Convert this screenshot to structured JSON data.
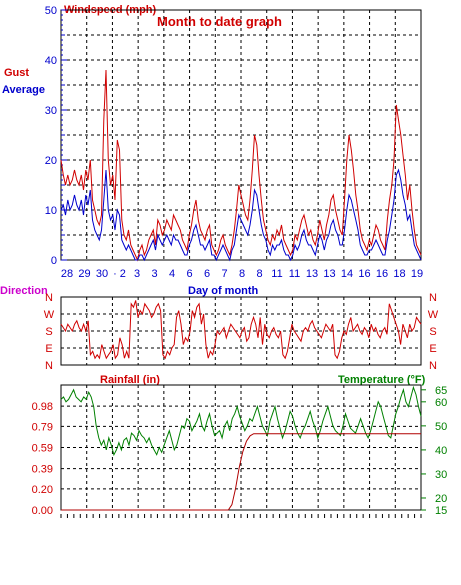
{
  "chart_data": [
    {
      "type": "line",
      "title": "Month to date graph",
      "ylabel": "Windspeed (mph)",
      "xlabel": "Day of month",
      "ylim": [
        0,
        50
      ],
      "y_ticks": [
        "0",
        "10",
        "20",
        "30",
        "40",
        "50"
      ],
      "x_ticks": [
        "28",
        "29",
        "30",
        "1",
        "2",
        "3",
        "3",
        "4",
        "5",
        "6",
        "6",
        "7",
        "8",
        "9",
        "10",
        "11",
        "11",
        "12",
        "13",
        "13",
        "14",
        "15",
        "16",
        "16",
        "17",
        "18",
        "18",
        "19"
      ],
      "x_tick_labels": [
        "28",
        "29",
        "30",
        "· 2",
        "3",
        "3",
        "4",
        "6",
        "6",
        "7",
        "8",
        "8",
        "11",
        "11",
        "13",
        "13",
        "14",
        "16",
        "16",
        "18",
        "19"
      ],
      "legend": [
        {
          "name": "Gust",
          "color": "#d00000"
        },
        {
          "name": "Average",
          "color": "#0000cc"
        }
      ],
      "series": [
        {
          "name": "Gust",
          "color": "#d00000",
          "values": [
            20,
            17,
            15,
            17,
            15,
            16,
            18,
            16,
            15,
            17,
            14,
            18,
            16,
            20,
            12,
            10,
            8,
            7,
            9,
            28,
            38,
            20,
            15,
            17,
            12,
            24,
            22,
            8,
            5,
            4,
            6,
            3,
            2,
            1,
            0,
            2,
            3,
            1,
            2,
            4,
            5,
            6,
            3,
            8,
            7,
            5,
            6,
            8,
            7,
            6,
            9,
            8,
            7,
            6,
            4,
            3,
            2,
            5,
            7,
            10,
            12,
            8,
            6,
            5,
            4,
            6,
            7,
            3,
            2,
            1,
            2,
            4,
            5,
            3,
            2,
            1,
            3,
            6,
            10,
            15,
            13,
            11,
            9,
            8,
            12,
            18,
            25,
            23,
            17,
            12,
            8,
            6,
            4,
            3,
            5,
            4,
            6,
            5,
            7,
            4,
            3,
            2,
            1,
            2,
            5,
            4,
            6,
            8,
            9,
            7,
            5,
            6,
            4,
            3,
            5,
            8,
            6,
            4,
            7,
            9,
            12,
            13,
            10,
            8,
            6,
            5,
            12,
            20,
            25,
            22,
            18,
            13,
            10,
            6,
            4,
            3,
            2,
            4,
            3,
            5,
            7,
            6,
            4,
            3,
            2,
            8,
            12,
            15,
            20,
            31,
            28,
            25,
            21,
            17,
            12,
            15,
            10,
            6,
            3,
            2,
            1
          ]
        },
        {
          "name": "Average",
          "color": "#0000cc",
          "values": [
            10,
            11,
            9,
            12,
            10,
            11,
            13,
            11,
            10,
            12,
            9,
            13,
            11,
            14,
            8,
            6,
            5,
            4,
            6,
            12,
            18,
            10,
            8,
            9,
            6,
            10,
            9,
            4,
            3,
            2,
            3,
            2,
            1,
            0,
            0,
            1,
            1,
            0,
            1,
            2,
            3,
            4,
            2,
            5,
            4,
            3,
            4,
            5,
            4,
            3,
            5,
            4,
            4,
            3,
            2,
            1,
            1,
            3,
            4,
            6,
            7,
            5,
            3,
            3,
            2,
            3,
            4,
            1,
            1,
            0,
            1,
            2,
            3,
            2,
            1,
            0,
            2,
            3,
            6,
            9,
            8,
            7,
            6,
            5,
            7,
            10,
            14,
            13,
            10,
            7,
            5,
            4,
            2,
            1,
            3,
            2,
            3,
            3,
            4,
            2,
            1,
            1,
            0,
            1,
            3,
            2,
            3,
            5,
            6,
            4,
            3,
            3,
            2,
            1,
            3,
            5,
            4,
            2,
            4,
            5,
            7,
            8,
            6,
            5,
            3,
            3,
            6,
            10,
            13,
            12,
            10,
            8,
            6,
            3,
            2,
            1,
            1,
            2,
            2,
            3,
            4,
            3,
            2,
            1,
            1,
            4,
            6,
            9,
            12,
            17,
            18,
            16,
            13,
            11,
            8,
            9,
            6,
            3,
            2,
            1,
            0
          ]
        }
      ]
    },
    {
      "type": "line",
      "ylabel": "Direction",
      "y_ticks": [
        "N",
        "W",
        "S",
        "E",
        "N"
      ],
      "series": [
        {
          "name": "Direction",
          "color": "#d00000",
          "values": [
            0.6,
            0.55,
            0.5,
            0.6,
            0.55,
            0.5,
            0.6,
            0.65,
            0.55,
            0.5,
            0.6,
            0.5,
            0.65,
            0.15,
            0.2,
            0.1,
            0.15,
            0.1,
            0.3,
            0.2,
            0.1,
            0.15,
            0.2,
            0.3,
            0.1,
            0.15,
            0.4,
            0.3,
            0.1,
            0.2,
            0.1,
            0.9,
            0.85,
            0.95,
            0.7,
            0.8,
            0.75,
            0.9,
            0.85,
            0.8,
            0.7,
            0.75,
            0.85,
            0.9,
            0.8,
            0.15,
            0.1,
            0.2,
            0.15,
            0.25,
            0.3,
            0.7,
            0.8,
            0.6,
            0.3,
            0.4,
            0.35,
            0.5,
            0.8,
            0.7,
            0.85,
            0.9,
            0.6,
            0.75,
            0.3,
            0.1,
            0.2,
            0.15,
            0.3,
            0.5,
            0.45,
            0.5,
            0.55,
            0.4,
            0.5,
            0.6,
            0.55,
            0.5,
            0.45,
            0.4,
            0.5,
            0.55,
            0.35,
            0.4,
            0.6,
            0.7,
            0.6,
            0.4,
            0.7,
            0.3,
            0.6,
            0.45,
            0.4,
            0.5,
            0.55,
            0.45,
            0.4,
            0.5,
            0.15,
            0.1,
            0.2,
            0.4,
            0.6,
            0.5,
            0.45,
            0.4,
            0.35,
            0.5,
            0.55,
            0.5,
            0.6,
            0.65,
            0.55,
            0.5,
            0.45,
            0.4,
            0.5,
            0.6,
            0.55,
            0.5,
            0.6,
            0.15,
            0.1,
            0.2,
            0.4,
            0.5,
            0.45,
            0.6,
            0.7,
            0.5,
            0.55,
            0.6,
            0.5,
            0.45,
            0.55,
            0.5,
            0.4,
            0.6,
            0.5,
            0.55,
            0.45,
            0.4,
            0.5,
            0.55,
            0.45,
            0.9,
            0.8,
            0.7,
            0.6,
            0.5,
            0.3,
            0.6,
            0.5,
            0.4,
            0.6,
            0.5,
            0.55,
            0.7,
            0.65,
            0.6
          ]
        }
      ]
    },
    {
      "type": "line",
      "ylabel": "Rainfall (in)",
      "ylim": [
        0,
        1.18
      ],
      "y_ticks": [
        "0.00",
        "0.20",
        "0.39",
        "0.59",
        "0.79",
        "0.98"
      ],
      "series": [
        {
          "name": "Rainfall (in)",
          "color": "#b00000",
          "values": [
            0,
            0,
            0,
            0,
            0,
            0,
            0,
            0,
            0,
            0,
            0,
            0,
            0,
            0,
            0,
            0,
            0,
            0,
            0,
            0,
            0,
            0,
            0,
            0,
            0,
            0,
            0,
            0,
            0,
            0,
            0,
            0,
            0,
            0,
            0,
            0,
            0,
            0,
            0,
            0,
            0,
            0,
            0,
            0,
            0,
            0,
            0,
            0.05,
            0.2,
            0.4,
            0.55,
            0.65,
            0.7,
            0.72,
            0.72,
            0.72,
            0.72,
            0.72,
            0.72,
            0.72,
            0.72,
            0.72,
            0.72,
            0.72,
            0.72,
            0.72,
            0.72,
            0.72,
            0.72,
            0.72,
            0.72,
            0.72,
            0.72,
            0.72,
            0.72,
            0.72,
            0.72,
            0.72,
            0.72,
            0.72,
            0.72,
            0.72,
            0.72,
            0.72,
            0.72,
            0.72,
            0.72,
            0.72,
            0.72,
            0.72,
            0.72,
            0.72,
            0.72,
            0.72,
            0.72,
            0.72,
            0.72,
            0.72,
            0.72,
            0.72
          ]
        }
      ]
    },
    {
      "type": "line",
      "ylabel": "Temperature (°F)",
      "ylim": [
        15,
        67
      ],
      "y_ticks": [
        "15",
        "20",
        "30",
        "40",
        "50",
        "60",
        "65"
      ],
      "series": [
        {
          "name": "Temperature (°F)",
          "color": "#008000",
          "values": [
            61,
            62,
            60,
            61,
            63,
            65,
            62,
            61,
            60,
            62,
            61,
            64,
            62,
            58,
            50,
            45,
            42,
            44,
            40,
            45,
            42,
            38,
            40,
            43,
            40,
            44,
            45,
            42,
            47,
            46,
            44,
            48,
            46,
            45,
            43,
            45,
            42,
            40,
            38,
            41,
            39,
            42,
            45,
            48,
            44,
            40,
            42,
            46,
            50,
            49,
            53,
            52,
            48,
            50,
            52,
            55,
            50,
            48,
            52,
            55,
            50,
            46,
            47,
            48,
            45,
            50,
            52,
            48,
            53,
            55,
            58,
            54,
            51,
            48,
            50,
            53,
            52,
            55,
            58,
            54,
            50,
            48,
            46,
            52,
            55,
            58,
            53,
            49,
            45,
            48,
            52,
            56,
            54,
            50,
            47,
            45,
            48,
            50,
            53,
            56,
            52,
            49,
            45,
            48,
            52,
            55,
            58,
            54,
            50,
            48,
            47,
            46,
            50,
            55,
            52,
            49,
            48,
            47,
            50,
            53,
            50,
            47,
            45,
            48,
            52,
            56,
            60,
            58,
            54,
            50,
            46,
            45,
            50,
            55,
            58,
            62,
            65,
            60,
            58,
            62,
            66,
            63,
            58,
            54
          ]
        }
      ]
    }
  ],
  "labels": {
    "gust": "Gust",
    "average": "Average",
    "direction": "Direction",
    "day_of_month": "Day of month",
    "rainfall": "Rainfall (in)",
    "temperature": "Temperature (°F)"
  },
  "colors": {
    "red": "#d00000",
    "blue": "#0000cc",
    "green": "#008000",
    "magenta": "#cc00cc",
    "grid": "#000000"
  }
}
